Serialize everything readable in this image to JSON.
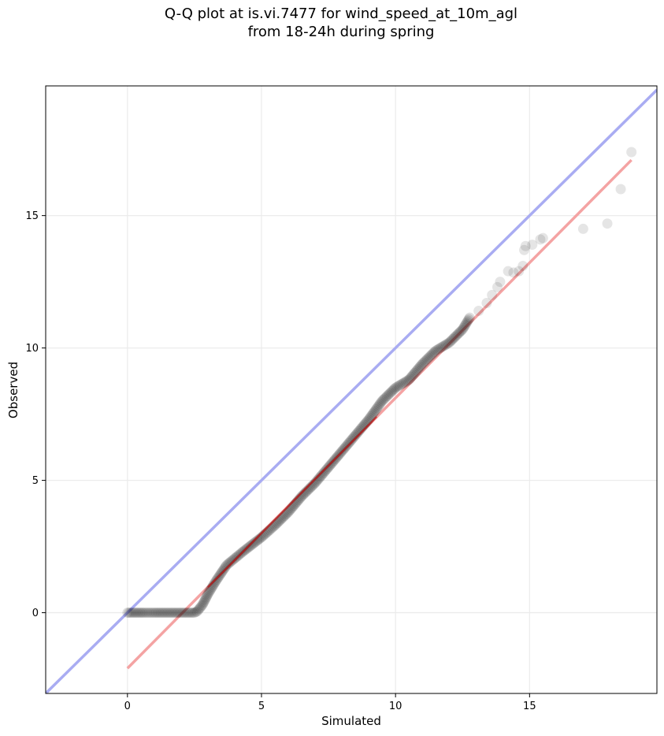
{
  "chart_data": {
    "type": "scatter",
    "title": "Q-Q plot at is.vi.7477 for wind_speed_at_10m_agl",
    "subtitle": "from 18-24h during spring",
    "xlabel": "Simulated",
    "ylabel": "Observed",
    "xlim": [
      -3.05,
      19.75
    ],
    "ylim": [
      -3.05,
      19.9
    ],
    "xticks": [
      0,
      5,
      10,
      15
    ],
    "yticks": [
      0,
      5,
      10,
      15
    ],
    "grid": true,
    "colors": {
      "points": "#000000",
      "fit_line": "#f4a3a3",
      "fit_line_under": "#cc0000",
      "identity_line": "#a9acf2",
      "grid": "#ebebeb"
    },
    "identity_line": {
      "from": [
        -3.05,
        -3.05
      ],
      "to": [
        19.75,
        19.75
      ]
    },
    "fit_line": {
      "from": [
        0,
        -2.1
      ],
      "to": [
        18.8,
        17.1
      ]
    },
    "quantile_curve": [
      [
        0.0,
        0.0
      ],
      [
        0.3,
        0.0
      ],
      [
        0.6,
        0.0
      ],
      [
        1.0,
        0.0
      ],
      [
        1.5,
        0.0
      ],
      [
        2.0,
        0.0
      ],
      [
        2.5,
        0.0
      ],
      [
        2.6,
        0.05
      ],
      [
        2.8,
        0.3
      ],
      [
        3.0,
        0.7
      ],
      [
        3.3,
        1.2
      ],
      [
        3.7,
        1.8
      ],
      [
        4.3,
        2.3
      ],
      [
        5.0,
        2.85
      ],
      [
        5.5,
        3.3
      ],
      [
        6.0,
        3.8
      ],
      [
        6.5,
        4.4
      ],
      [
        7.0,
        4.9
      ],
      [
        7.5,
        5.5
      ],
      [
        8.0,
        6.1
      ],
      [
        8.5,
        6.7
      ],
      [
        9.0,
        7.3
      ],
      [
        9.5,
        8.0
      ],
      [
        10.0,
        8.5
      ],
      [
        10.5,
        8.8
      ],
      [
        11.0,
        9.4
      ],
      [
        11.5,
        9.9
      ],
      [
        12.0,
        10.2
      ],
      [
        12.5,
        10.7
      ],
      [
        12.8,
        11.2
      ]
    ],
    "sparse_points": [
      [
        13.1,
        11.4
      ],
      [
        13.4,
        11.7
      ],
      [
        13.6,
        12.0
      ],
      [
        13.8,
        12.3
      ],
      [
        13.9,
        12.5
      ],
      [
        14.2,
        12.9
      ],
      [
        14.4,
        12.85
      ],
      [
        14.6,
        12.9
      ],
      [
        14.75,
        13.1
      ],
      [
        14.8,
        13.7
      ],
      [
        14.85,
        13.85
      ],
      [
        15.1,
        13.9
      ],
      [
        15.4,
        14.1
      ],
      [
        15.5,
        14.15
      ],
      [
        17.0,
        14.5
      ],
      [
        17.9,
        14.7
      ],
      [
        18.4,
        16.0
      ],
      [
        18.8,
        17.4
      ]
    ]
  }
}
